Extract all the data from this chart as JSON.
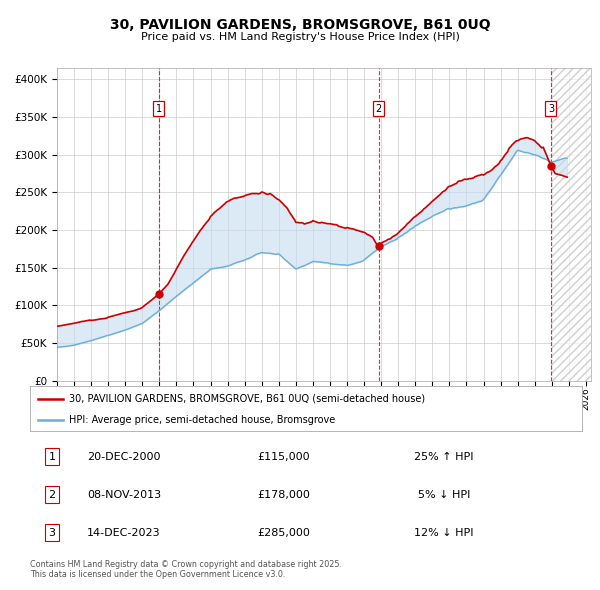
{
  "title": "30, PAVILION GARDENS, BROMSGROVE, B61 0UQ",
  "subtitle": "Price paid vs. HM Land Registry's House Price Index (HPI)",
  "ylabel_ticks": [
    "£0",
    "£50K",
    "£100K",
    "£150K",
    "£200K",
    "£250K",
    "£300K",
    "£350K",
    "£400K"
  ],
  "ytick_values": [
    0,
    50000,
    100000,
    150000,
    200000,
    250000,
    300000,
    350000,
    400000
  ],
  "ylim": [
    0,
    415000
  ],
  "xlim_start": 1995.0,
  "xlim_end": 2026.3,
  "background_color": "#ffffff",
  "grid_color": "#cccccc",
  "transactions": [
    {
      "date": "20-DEC-2000",
      "price": 115000,
      "year": 2000.97,
      "label": "1",
      "pct": "25%",
      "dir": "↑"
    },
    {
      "date": "08-NOV-2013",
      "price": 178000,
      "year": 2013.85,
      "label": "2",
      "pct": "5%",
      "dir": "↓"
    },
    {
      "date": "14-DEC-2023",
      "price": 285000,
      "year": 2023.95,
      "label": "3",
      "pct": "12%",
      "dir": "↓"
    }
  ],
  "hpi_color": "#6baed6",
  "hpi_fill_color": "#c6dcef",
  "price_color": "#cc0000",
  "marker_color": "#cc0000",
  "vline_color": "#cc0000",
  "number_box_color": "#cc0000",
  "legend_label_red": "30, PAVILION GARDENS, BROMSGROVE, B61 0UQ (semi-detached house)",
  "legend_label_blue": "HPI: Average price, semi-detached house, Bromsgrove",
  "footer_line1": "Contains HM Land Registry data © Crown copyright and database right 2025.",
  "footer_line2": "This data is licensed under the Open Government Licence v3.0.",
  "hatch_year": 2023.95
}
